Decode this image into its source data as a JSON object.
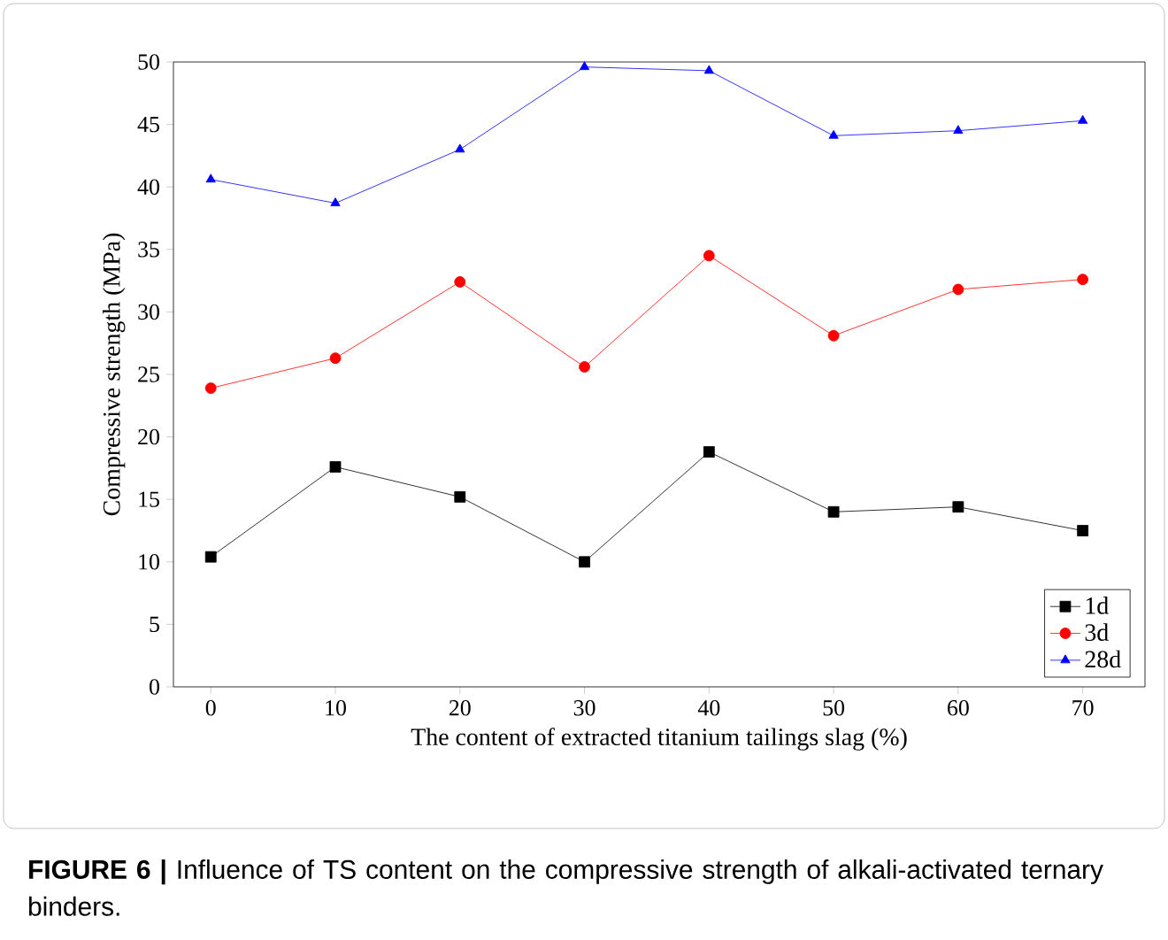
{
  "chart_data": {
    "type": "line",
    "xlabel": "The content of extracted titanium tailings slag (%)",
    "ylabel": "Compressive strength (MPa)",
    "annotations": [
      "**FIGURE 6 |** Influence of TS content on the compressive strength of alkali-activated ternary binders."
    ],
    "x": [
      0,
      10,
      20,
      30,
      40,
      50,
      60,
      70
    ],
    "series": [
      {
        "name": "1d",
        "color": "#000000",
        "marker": "square",
        "values": [
          10.4,
          17.6,
          15.2,
          10.0,
          18.8,
          14.0,
          14.4,
          12.5
        ]
      },
      {
        "name": "3d",
        "color": "#ff0000",
        "marker": "circle",
        "values": [
          23.9,
          26.3,
          32.4,
          25.6,
          34.5,
          28.1,
          31.8,
          32.6
        ]
      },
      {
        "name": "28d",
        "color": "#0000ff",
        "marker": "triangle",
        "values": [
          40.6,
          38.7,
          43.0,
          49.6,
          49.3,
          44.1,
          44.5,
          45.3
        ]
      }
    ],
    "xlim": [
      -3,
      75
    ],
    "ylim": [
      0,
      50
    ],
    "xticks": [
      0,
      10,
      20,
      30,
      40,
      50,
      60,
      70
    ],
    "yticks": [
      0,
      5,
      10,
      15,
      20,
      25,
      30,
      35,
      40,
      45,
      50
    ],
    "legend": "bottom right",
    "grid": false,
    "line_style": "solid"
  }
}
